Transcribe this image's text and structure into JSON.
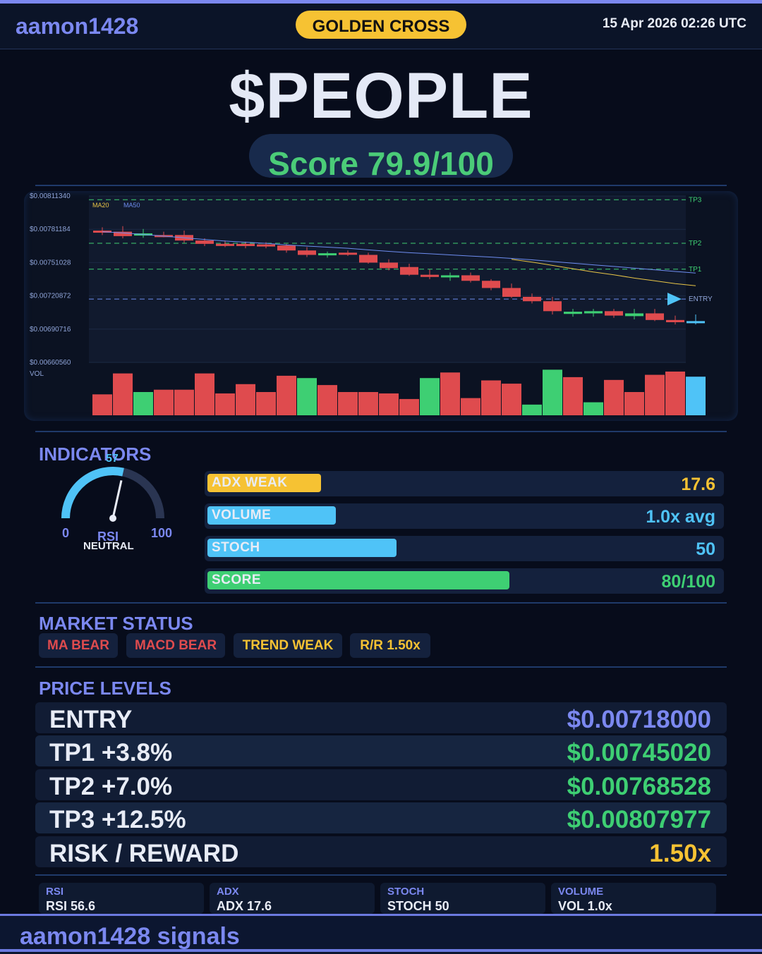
{
  "header": {
    "brand": "aamon1428",
    "signal_badge": "GOLDEN CROSS",
    "datetime": "15 Apr 2026  02:26 UTC"
  },
  "ticker": "$PEOPLE",
  "score_text": "Score 79.9/100",
  "chart_data": {
    "type": "candlestick",
    "y_ticks": [
      "$0.00811340",
      "$0.00781184",
      "$0.00751028",
      "$0.00720872",
      "$0.00690716",
      "$0.00660560"
    ],
    "ylim": [
      0.0066056,
      0.0081134
    ],
    "legend": [
      "MA20",
      "MA50"
    ],
    "level_labels": [
      "TP3",
      "TP2",
      "TP1",
      "ENTRY"
    ],
    "levels": {
      "TP3": 0.00807977,
      "TP2": 0.00768528,
      "TP1": 0.0074502,
      "ENTRY": 0.00718
    },
    "volume_label": "VOL",
    "candles": [
      {
        "o": 0.0078,
        "h": 0.00783,
        "l": 0.00776,
        "c": 0.00779
      },
      {
        "o": 0.00779,
        "h": 0.00784,
        "l": 0.00773,
        "c": 0.00775
      },
      {
        "o": 0.007755,
        "h": 0.007815,
        "l": 0.007735,
        "c": 0.007775
      },
      {
        "o": 0.00776,
        "h": 0.00779,
        "l": 0.00774,
        "c": 0.007755
      },
      {
        "o": 0.00776,
        "h": 0.0078,
        "l": 0.00769,
        "c": 0.00771
      },
      {
        "o": 0.00771,
        "h": 0.00773,
        "l": 0.00766,
        "c": 0.00768
      },
      {
        "o": 0.00768,
        "h": 0.00771,
        "l": 0.00765,
        "c": 0.00767
      },
      {
        "o": 0.00768,
        "h": 0.0077,
        "l": 0.00764,
        "c": 0.00766
      },
      {
        "o": 0.007675,
        "h": 0.007695,
        "l": 0.00764,
        "c": 0.00766
      },
      {
        "o": 0.007665,
        "h": 0.00768,
        "l": 0.0076,
        "c": 0.00762
      },
      {
        "o": 0.00762,
        "h": 0.00765,
        "l": 0.00756,
        "c": 0.00758
      },
      {
        "o": 0.00758,
        "h": 0.00761,
        "l": 0.007555,
        "c": 0.007595
      },
      {
        "o": 0.0076,
        "h": 0.00762,
        "l": 0.00757,
        "c": 0.007585
      },
      {
        "o": 0.00758,
        "h": 0.0076,
        "l": 0.0075,
        "c": 0.00751
      },
      {
        "o": 0.00751,
        "h": 0.00754,
        "l": 0.00744,
        "c": 0.00746
      },
      {
        "o": 0.00747,
        "h": 0.0075,
        "l": 0.00739,
        "c": 0.0074
      },
      {
        "o": 0.0074,
        "h": 0.00745,
        "l": 0.00736,
        "c": 0.00738
      },
      {
        "o": 0.00738,
        "h": 0.00742,
        "l": 0.007345,
        "c": 0.007395
      },
      {
        "o": 0.007395,
        "h": 0.00742,
        "l": 0.00733,
        "c": 0.007345
      },
      {
        "o": 0.007345,
        "h": 0.00736,
        "l": 0.00726,
        "c": 0.00728
      },
      {
        "o": 0.00728,
        "h": 0.00732,
        "l": 0.00719,
        "c": 0.0072
      },
      {
        "o": 0.0072,
        "h": 0.00723,
        "l": 0.00714,
        "c": 0.00716
      },
      {
        "o": 0.00716,
        "h": 0.0072,
        "l": 0.00704,
        "c": 0.00707
      },
      {
        "o": 0.007045,
        "h": 0.00709,
        "l": 0.00702,
        "c": 0.007065
      },
      {
        "o": 0.00705,
        "h": 0.00709,
        "l": 0.00702,
        "c": 0.00707
      },
      {
        "o": 0.00707,
        "h": 0.00709,
        "l": 0.00701,
        "c": 0.00703
      },
      {
        "o": 0.007025,
        "h": 0.00709,
        "l": 0.006995,
        "c": 0.00705
      },
      {
        "o": 0.00705,
        "h": 0.00709,
        "l": 0.00698,
        "c": 0.00699
      },
      {
        "o": 0.00699,
        "h": 0.00703,
        "l": 0.00695,
        "c": 0.00697
      },
      {
        "o": 0.00698,
        "h": 0.00704,
        "l": 0.00695,
        "c": 0.00697
      }
    ],
    "ma20": [
      null,
      null,
      null,
      null,
      null,
      null,
      null,
      null,
      null,
      null,
      null,
      null,
      null,
      null,
      null,
      null,
      null,
      null,
      null,
      null,
      0.00754,
      0.007515,
      0.007485,
      0.007455,
      0.007425,
      0.0074,
      0.00737,
      0.007345,
      0.00732,
      0.0073
    ],
    "ma50": [
      0.00779,
      0.00778,
      0.007765,
      0.00775,
      0.007735,
      0.00772,
      0.007705,
      0.007695,
      0.007685,
      0.00767,
      0.00766,
      0.00765,
      0.00764,
      0.007625,
      0.007612,
      0.0076,
      0.00759,
      0.00758,
      0.00757,
      0.00756,
      0.007548,
      0.007535,
      0.00752,
      0.007505,
      0.00749,
      0.007475,
      0.00746,
      0.007445,
      0.00743,
      0.007415
    ],
    "volume": [
      0.45,
      0.9,
      0.5,
      0.55,
      0.55,
      0.9,
      0.47,
      0.67,
      0.5,
      0.85,
      0.8,
      0.65,
      0.5,
      0.5,
      0.47,
      0.35,
      0.8,
      0.92,
      0.37,
      0.75,
      0.68,
      0.23,
      0.98,
      0.82,
      0.28,
      0.76,
      0.5,
      0.87,
      0.94,
      0.83
    ],
    "volume_colors": [
      "bear",
      "bear",
      "bull",
      "bear",
      "bear",
      "bear",
      "bear",
      "bear",
      "bear",
      "bear",
      "bull",
      "bear",
      "bear",
      "bear",
      "bear",
      "bear",
      "bull",
      "bear",
      "bear",
      "bear",
      "bear",
      "bull",
      "bull",
      "bear",
      "bull",
      "bear",
      "bear",
      "bear",
      "bear",
      "entry"
    ],
    "colors": {
      "bull": "#3ecf73",
      "bear": "#df4b4e",
      "entry": "#4fc3f7",
      "ma20": "#e8c547",
      "ma50": "#6e8df0",
      "level": "#3ecf73",
      "entry_line": "#6e8df0"
    }
  },
  "indicators": {
    "title": "INDICATORS",
    "rsi": {
      "value": 57,
      "value_text": "57",
      "min_label": "0",
      "max_label": "100",
      "label": "RSI",
      "state": "NEUTRAL"
    },
    "bars": [
      {
        "label": "ADX  WEAK",
        "value_text": "17.6",
        "fraction": 0.3,
        "color": "#f6c233",
        "value_color": "#f6c233"
      },
      {
        "label": "VOLUME",
        "value_text": "1.0x avg",
        "fraction": 0.34,
        "color": "#4fc3f7",
        "value_color": "#4fc3f7"
      },
      {
        "label": "STOCH",
        "value_text": "50",
        "fraction": 0.5,
        "color": "#4fc3f7",
        "value_color": "#4fc3f7"
      },
      {
        "label": "SCORE",
        "value_text": "80/100",
        "fraction": 0.8,
        "color": "#3ecf73",
        "value_color": "#3ecf73"
      }
    ]
  },
  "market_status": {
    "title": "MARKET STATUS",
    "chips": [
      {
        "label": "MA BEAR",
        "color": "#df4b4e"
      },
      {
        "label": "MACD BEAR",
        "color": "#df4b4e"
      },
      {
        "label": "TREND WEAK",
        "color": "#f6c233"
      },
      {
        "label": "R/R  1.50x",
        "color": "#f6c233"
      }
    ]
  },
  "price_levels": {
    "title": "PRICE LEVELS",
    "rows": [
      {
        "label": "ENTRY",
        "value": "$0.00718000",
        "color": "#7b88f0"
      },
      {
        "label": "TP1  +3.8%",
        "value": "$0.00745020",
        "color": "#3ecf73"
      },
      {
        "label": "TP2  +7.0%",
        "value": "$0.00768528",
        "color": "#3ecf73"
      },
      {
        "label": "TP3  +12.5%",
        "value": "$0.00807977",
        "color": "#3ecf73"
      },
      {
        "label": "RISK / REWARD",
        "value": "1.50x",
        "color": "#f6c233"
      }
    ]
  },
  "stats": [
    {
      "title": "RSI",
      "value": "RSI 56.6"
    },
    {
      "title": "ADX",
      "value": "ADX 17.6"
    },
    {
      "title": "STOCH",
      "value": "STOCH 50"
    },
    {
      "title": "VOLUME",
      "value": "VOL 1.0x"
    }
  ],
  "footer": {
    "text": "aamon1428 signals"
  }
}
